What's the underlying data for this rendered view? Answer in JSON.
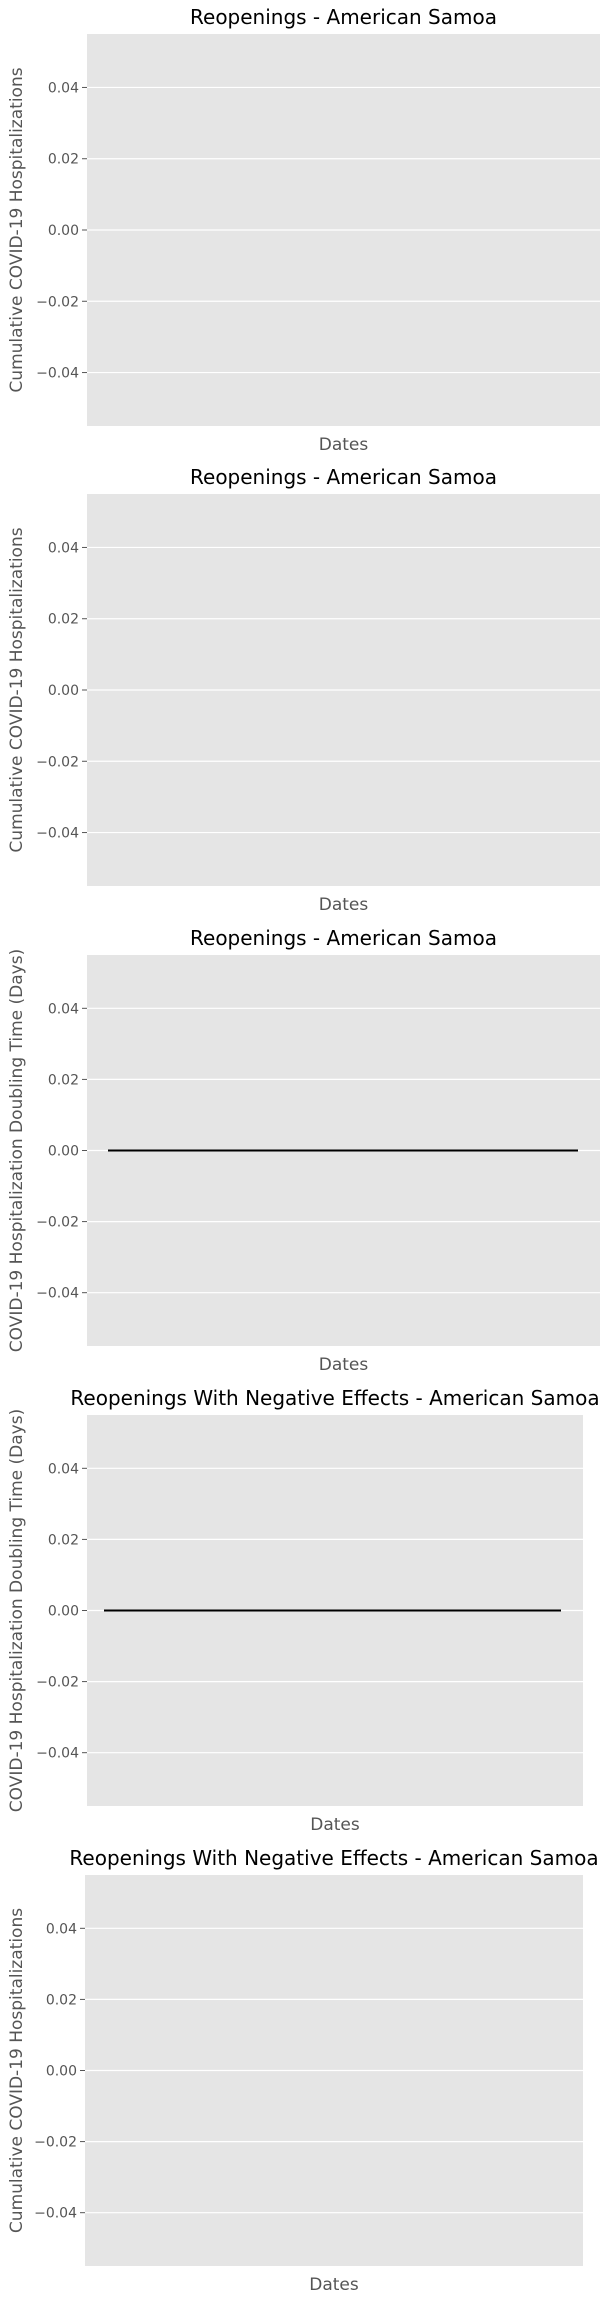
{
  "chart_data": [
    {
      "type": "line",
      "title": "Reopenings - American Samoa",
      "xlabel": "Dates",
      "ylabel": "Cumulative COVID-19 Hospitalizations",
      "ylim": [
        -0.055,
        0.055
      ],
      "yticks": [
        "0.04",
        "0.02",
        "0.00",
        "−0.02",
        "−0.04"
      ],
      "ytick_values": [
        0.04,
        0.02,
        0.0,
        -0.02,
        -0.04
      ],
      "grid": true,
      "background": "#e5e5e5",
      "series": []
    },
    {
      "type": "line",
      "title": "Reopenings - American Samoa",
      "xlabel": "Dates",
      "ylabel": "Cumulative COVID-19 Hospitalizations",
      "ylim": [
        -0.055,
        0.055
      ],
      "yticks": [
        "0.04",
        "0.02",
        "0.00",
        "−0.02",
        "−0.04"
      ],
      "ytick_values": [
        0.04,
        0.02,
        0.0,
        -0.02,
        -0.04
      ],
      "grid": true,
      "background": "#e5e5e5",
      "series": []
    },
    {
      "type": "line",
      "title": "Reopenings - American Samoa",
      "xlabel": "Dates",
      "ylabel": "COVID-19 Hospitalization Doubling Time (Days)",
      "ylim": [
        -0.055,
        0.055
      ],
      "yticks": [
        "0.04",
        "0.02",
        "0.00",
        "−0.02",
        "−0.04"
      ],
      "ytick_values": [
        0.04,
        0.02,
        0.0,
        -0.02,
        -0.04
      ],
      "grid": true,
      "background": "#e5e5e5",
      "series": [
        {
          "color": "#000000",
          "values": [
            0,
            0
          ]
        }
      ]
    },
    {
      "type": "line",
      "title": "Reopenings With Negative Effects - American Samoa",
      "xlabel": "Dates",
      "ylabel": "COVID-19 Hospitalization Doubling Time (Days)",
      "ylim": [
        -0.055,
        0.055
      ],
      "yticks": [
        "0.04",
        "0.02",
        "0.00",
        "−0.02",
        "−0.04"
      ],
      "ytick_values": [
        0.04,
        0.02,
        0.0,
        -0.02,
        -0.04
      ],
      "grid": true,
      "background": "#e5e5e5",
      "series": [
        {
          "color": "#000000",
          "values": [
            0,
            0
          ]
        }
      ]
    },
    {
      "type": "line",
      "title": "Reopenings With Negative Effects - American Samoa",
      "xlabel": "Dates",
      "ylabel": "Cumulative COVID-19 Hospitalizations",
      "ylim": [
        -0.055,
        0.055
      ],
      "yticks": [
        "0.04",
        "0.02",
        "0.00",
        "−0.02",
        "−0.04"
      ],
      "ytick_values": [
        0.04,
        0.02,
        0.0,
        -0.02,
        -0.04
      ],
      "grid": true,
      "background": "#e5e5e5",
      "series": []
    }
  ]
}
